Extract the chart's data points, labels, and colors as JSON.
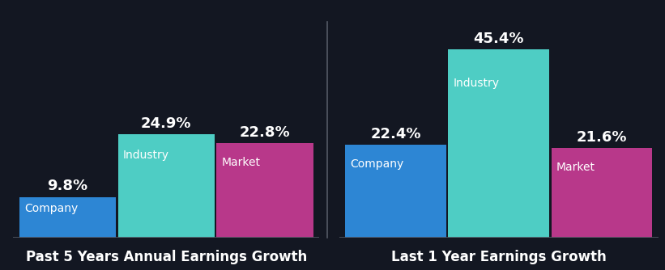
{
  "background_color": "#131722",
  "groups": [
    {
      "label": "Past 5 Years Annual Earnings Growth",
      "bars": [
        {
          "name": "Company",
          "value": 9.8,
          "color": "#2d86d4"
        },
        {
          "name": "Industry",
          "value": 24.9,
          "color": "#4ecdc4"
        },
        {
          "name": "Market",
          "value": 22.8,
          "color": "#b8388a"
        }
      ]
    },
    {
      "label": "Last 1 Year Earnings Growth",
      "bars": [
        {
          "name": "Company",
          "value": 22.4,
          "color": "#2d86d4"
        },
        {
          "name": "Industry",
          "value": 45.4,
          "color": "#4ecdc4"
        },
        {
          "name": "Market",
          "value": 21.6,
          "color": "#b8388a"
        }
      ]
    }
  ],
  "text_color": "#ffffff",
  "name_color_industry": "#1a3a3a",
  "name_color_company": "#0a2050",
  "name_color_market": "#3a0a2a",
  "value_fontsize": 13,
  "name_fontsize": 10,
  "group_label_fontsize": 12,
  "ylim": [
    0,
    52
  ],
  "separator_color": "#555a66",
  "bar_gap": 0.02
}
